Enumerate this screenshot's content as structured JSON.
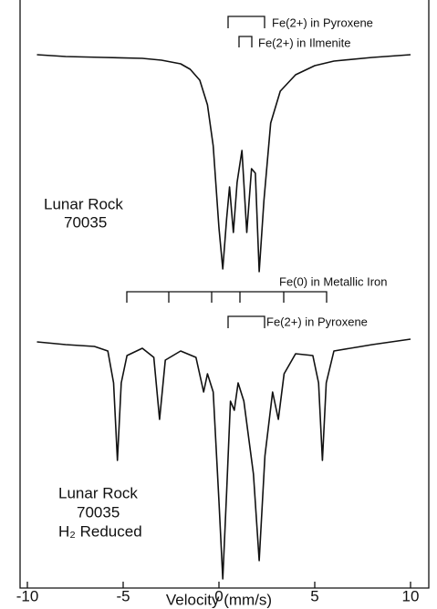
{
  "chart_data": {
    "type": "line",
    "xlabel": "Velocity (mm/s)",
    "xlim": [
      -10,
      10
    ],
    "xticks": [
      -10,
      -5,
      0,
      5,
      10
    ],
    "ylim": [
      0,
      650
    ],
    "annotations": [
      "Fe(2+) in Pyroxene",
      "Fe(2+) in Ilmenite",
      "Lunar Rock",
      "70035",
      "Fe(0) in Metallic Iron",
      "Fe(2+) in Pyroxene",
      "Lunar Rock",
      "70035",
      "H₂ Reduced"
    ],
    "series": [
      {
        "color": "#111111",
        "x": [
          -9.5,
          -8,
          -6,
          -4,
          -3,
          -2,
          -1.5,
          -1,
          -0.6,
          -0.3,
          0,
          0.2,
          0.4,
          0.55,
          0.75,
          0.95,
          1.2,
          1.45,
          1.7,
          1.9,
          2.1,
          2.35,
          2.7,
          3.2,
          4,
          5,
          6,
          8,
          10
        ],
        "values": [
          590,
          588,
          587,
          586,
          584,
          580,
          574,
          562,
          535,
          490,
          400,
          355,
          410,
          445,
          395,
          450,
          485,
          395,
          465,
          460,
          352,
          430,
          515,
          550,
          568,
          578,
          583,
          587,
          590
        ]
      },
      {
        "color": "#111111",
        "x": [
          -9.5,
          -8,
          -6.5,
          -5.8,
          -5.5,
          -5.3,
          -5.1,
          -4.8,
          -4,
          -3.4,
          -3.1,
          -2.8,
          -2,
          -1.2,
          -0.8,
          -0.6,
          -0.3,
          0,
          0.2,
          0.4,
          0.6,
          0.8,
          1.0,
          1.3,
          1.8,
          2.1,
          2.4,
          2.8,
          3.1,
          3.4,
          4,
          4.9,
          5.2,
          5.4,
          5.6,
          6,
          8,
          10
        ],
        "values": [
          275,
          272,
          270,
          265,
          230,
          145,
          230,
          260,
          268,
          258,
          190,
          255,
          265,
          258,
          220,
          240,
          220,
          100,
          15,
          110,
          210,
          200,
          230,
          210,
          130,
          35,
          150,
          220,
          190,
          240,
          262,
          260,
          230,
          145,
          230,
          265,
          272,
          278
        ]
      }
    ]
  }
}
